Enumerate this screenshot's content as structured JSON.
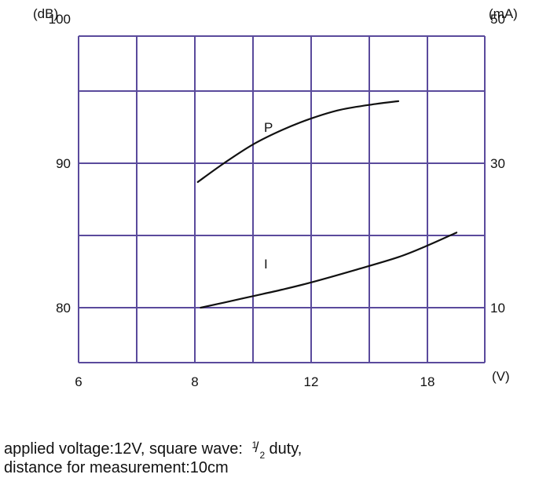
{
  "chart_data": {
    "type": "line",
    "y_unit_left": "(dB)",
    "y_unit_right": "(mA)",
    "x_unit": "(V)",
    "x_ticks": [
      "6",
      "8",
      "12",
      "18"
    ],
    "y_ticks_left": [
      "100",
      "90",
      "80"
    ],
    "y_ticks_right": [
      "50",
      "30",
      "10"
    ],
    "series": [
      {
        "name": "P",
        "axis": "left",
        "points": [
          [
            8.1,
            88.7
          ],
          [
            9.0,
            90.0
          ],
          [
            10.0,
            91.3
          ],
          [
            11.0,
            92.3
          ],
          [
            12.0,
            93.1
          ],
          [
            13.0,
            93.7
          ],
          [
            14.2,
            94.1
          ],
          [
            15.0,
            94.3
          ]
        ]
      },
      {
        "name": "I",
        "axis": "right",
        "points": [
          [
            8.2,
            10.0
          ],
          [
            9.0,
            10.7
          ],
          [
            10.0,
            11.6
          ],
          [
            11.0,
            12.5
          ],
          [
            12.0,
            13.5
          ],
          [
            13.5,
            15.2
          ],
          [
            15.0,
            17.0
          ],
          [
            16.0,
            18.6
          ],
          [
            17.0,
            20.4
          ]
        ]
      }
    ]
  },
  "notes": {
    "line1_before": "applied voltage:12V, square wave: ",
    "frac_num": "1",
    "frac_slash": "/",
    "frac_den": "2",
    "line1_after": "duty,",
    "line2": "distance for measurement:10cm"
  },
  "colors": {
    "grid": "#5a4a9c",
    "curve": "#111111"
  }
}
